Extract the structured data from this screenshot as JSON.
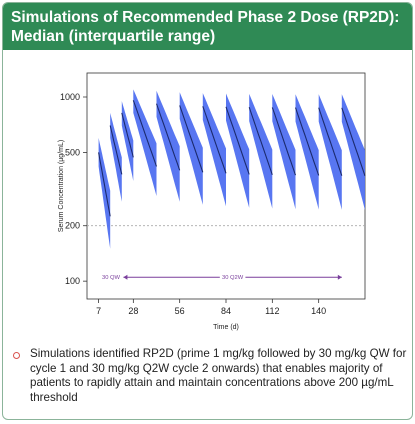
{
  "header": {
    "title_line1": "Simulations of Recommended Phase 2 Dose (RP2D):",
    "title_line2": "Median (interquartile range)"
  },
  "colors": {
    "header_bg": "#2f8a55",
    "band": "#4f6ff0",
    "median_line": "#1b2a6e",
    "dose_bar": "#7a3f9c",
    "threshold": "#aaaaaa"
  },
  "chart_data": {
    "type": "area",
    "title": "",
    "xlabel": "Time (d)",
    "ylabel": "Serum Concentration (µg/mL)",
    "xlim": [
      0,
      168
    ],
    "ylim": [
      80,
      1350
    ],
    "y_scale": "log",
    "x_ticks": [
      7,
      28,
      56,
      84,
      112,
      140
    ],
    "y_ticks": [
      100,
      200,
      500,
      1000
    ],
    "threshold": 200,
    "annotations": [
      {
        "label": "30 QW",
        "x_start": 8,
        "x_end": 21
      },
      {
        "label": "30 Q2W",
        "x_start": 22,
        "x_end": 154
      }
    ],
    "cycles": [
      {
        "start": 7,
        "end": 14,
        "median_peak": 500,
        "median_trough": 225,
        "q1_peak": 420,
        "q3_peak": 600,
        "q1_trough": 150,
        "q3_trough": 310
      },
      {
        "start": 14,
        "end": 21,
        "median_peak": 700,
        "median_trough": 380,
        "q1_peak": 600,
        "q3_peak": 820,
        "q1_trough": 270,
        "q3_trough": 470
      },
      {
        "start": 21,
        "end": 28,
        "median_peak": 820,
        "median_trough": 470,
        "q1_peak": 700,
        "q3_peak": 950,
        "q1_trough": 350,
        "q3_trough": 580
      },
      {
        "start": 28,
        "end": 42,
        "median_peak": 960,
        "median_trough": 420,
        "q1_peak": 820,
        "q3_peak": 1100,
        "q1_trough": 290,
        "q3_trough": 560
      },
      {
        "start": 42,
        "end": 56,
        "median_peak": 920,
        "median_trough": 400,
        "q1_peak": 780,
        "q3_peak": 1080,
        "q1_trough": 270,
        "q3_trough": 540
      },
      {
        "start": 56,
        "end": 70,
        "median_peak": 900,
        "median_trough": 390,
        "q1_peak": 760,
        "q3_peak": 1060,
        "q1_trough": 260,
        "q3_trough": 530
      },
      {
        "start": 70,
        "end": 84,
        "median_peak": 890,
        "median_trough": 385,
        "q1_peak": 750,
        "q3_peak": 1050,
        "q1_trough": 255,
        "q3_trough": 525
      },
      {
        "start": 84,
        "end": 98,
        "median_peak": 885,
        "median_trough": 380,
        "q1_peak": 745,
        "q3_peak": 1045,
        "q1_trough": 250,
        "q3_trough": 520
      },
      {
        "start": 98,
        "end": 112,
        "median_peak": 880,
        "median_trough": 378,
        "q1_peak": 740,
        "q3_peak": 1040,
        "q1_trough": 248,
        "q3_trough": 518
      },
      {
        "start": 112,
        "end": 126,
        "median_peak": 878,
        "median_trough": 376,
        "q1_peak": 738,
        "q3_peak": 1038,
        "q1_trough": 246,
        "q3_trough": 516
      },
      {
        "start": 126,
        "end": 140,
        "median_peak": 876,
        "median_trough": 375,
        "q1_peak": 736,
        "q3_peak": 1036,
        "q1_trough": 245,
        "q3_trough": 515
      },
      {
        "start": 140,
        "end": 154,
        "median_peak": 875,
        "median_trough": 374,
        "q1_peak": 735,
        "q3_peak": 1035,
        "q1_trough": 244,
        "q3_trough": 514
      },
      {
        "start": 154,
        "end": 168,
        "median_peak": 874,
        "median_trough": 373,
        "q1_peak": 734,
        "q3_peak": 1034,
        "q1_trough": 243,
        "q3_trough": 513
      }
    ]
  },
  "bullet": {
    "text": "Simulations identified RP2D (prime 1 mg/kg followed by 30 mg/kg QW for cycle 1 and 30 mg/kg Q2W cycle 2 onwards) that enables majority of patients to rapidly attain and maintain concentrations above 200 µg/mL threshold"
  }
}
